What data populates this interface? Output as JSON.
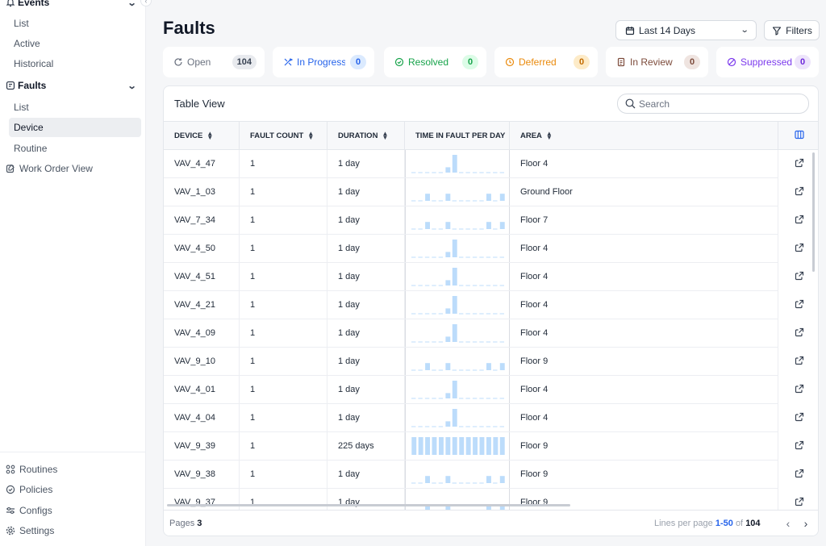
{
  "sidebar": {
    "events_label": "Events",
    "events_items": [
      "List",
      "Active",
      "Historical"
    ],
    "faults_label": "Faults",
    "faults_items": [
      "List",
      "Device",
      "Routine"
    ],
    "work_order_label": "Work Order View",
    "bottom_items": [
      "Routines",
      "Policies",
      "Configs",
      "Settings"
    ]
  },
  "header": {
    "title": "Faults",
    "date_range": "Last 14 Days",
    "filters_label": "Filters"
  },
  "status_tabs": [
    {
      "label": "Open",
      "count": "104",
      "color": "#6b7280",
      "badge_bg": "#e8eaee",
      "badge_fg": "#374151"
    },
    {
      "label": "In Progress",
      "count": "0",
      "color": "#2563eb",
      "badge_bg": "#dbeafe",
      "badge_fg": "#2563eb"
    },
    {
      "label": "Resolved",
      "count": "0",
      "color": "#16a34a",
      "badge_bg": "#dcfce7",
      "badge_fg": "#16a34a"
    },
    {
      "label": "Deferred",
      "count": "0",
      "color": "#ea8a0c",
      "badge_bg": "#fdebc8",
      "badge_fg": "#c26a00"
    },
    {
      "label": "In Review",
      "count": "0",
      "color": "#7c4a3a",
      "badge_bg": "#efe4e0",
      "badge_fg": "#7c4a3a"
    },
    {
      "label": "Suppressed",
      "count": "0",
      "color": "#7c3aed",
      "badge_bg": "#ede4fb",
      "badge_fg": "#6d28d9"
    }
  ],
  "table": {
    "title": "Table View",
    "search_placeholder": "Search",
    "columns": [
      "DEVICE",
      "FAULT COUNT",
      "DURATION",
      "TIME IN FAULT PER DAY",
      "AREA"
    ],
    "rows": [
      {
        "device": "VAV_4_47",
        "fault_count": "1",
        "duration": "1 day",
        "area": "Floor 4",
        "pattern": "a"
      },
      {
        "device": "VAV_1_03",
        "fault_count": "1",
        "duration": "1 day",
        "area": "Ground Floor",
        "pattern": "b"
      },
      {
        "device": "VAV_7_34",
        "fault_count": "1",
        "duration": "1 day",
        "area": "Floor 7",
        "pattern": "b"
      },
      {
        "device": "VAV_4_50",
        "fault_count": "1",
        "duration": "1 day",
        "area": "Floor 4",
        "pattern": "a"
      },
      {
        "device": "VAV_4_51",
        "fault_count": "1",
        "duration": "1 day",
        "area": "Floor 4",
        "pattern": "a"
      },
      {
        "device": "VAV_4_21",
        "fault_count": "1",
        "duration": "1 day",
        "area": "Floor 4",
        "pattern": "a"
      },
      {
        "device": "VAV_4_09",
        "fault_count": "1",
        "duration": "1 day",
        "area": "Floor 4",
        "pattern": "a"
      },
      {
        "device": "VAV_9_10",
        "fault_count": "1",
        "duration": "1 day",
        "area": "Floor 9",
        "pattern": "b"
      },
      {
        "device": "VAV_4_01",
        "fault_count": "1",
        "duration": "1 day",
        "area": "Floor 4",
        "pattern": "a"
      },
      {
        "device": "VAV_4_04",
        "fault_count": "1",
        "duration": "1 day",
        "area": "Floor 4",
        "pattern": "a"
      },
      {
        "device": "VAV_9_39",
        "fault_count": "1",
        "duration": "225 days",
        "area": "Floor 9",
        "pattern": "full"
      },
      {
        "device": "VAV_9_38",
        "fault_count": "1",
        "duration": "1 day",
        "area": "Floor 9",
        "pattern": "b"
      },
      {
        "device": "VAV_9_37",
        "fault_count": "1",
        "duration": "1 day",
        "area": "Floor 9",
        "pattern": "b"
      }
    ],
    "sparkline_patterns": {
      "a": [
        0,
        0,
        0,
        0,
        0,
        0.3,
        1,
        0,
        0,
        0,
        0,
        0,
        0,
        0
      ],
      "b": [
        0,
        0,
        0.4,
        0,
        0,
        0.4,
        0,
        0,
        0,
        0,
        0,
        0.4,
        0,
        0.4
      ],
      "full": [
        1,
        1,
        1,
        1,
        1,
        1,
        1,
        1,
        1,
        1,
        1,
        1,
        1,
        1
      ]
    },
    "bar_color": "#bcdcfb"
  },
  "footer": {
    "pages_label": "Pages",
    "pages_count": "3",
    "lines_label": "Lines per page",
    "lines_range": "1-50",
    "lines_of": "of",
    "lines_total": "104"
  }
}
